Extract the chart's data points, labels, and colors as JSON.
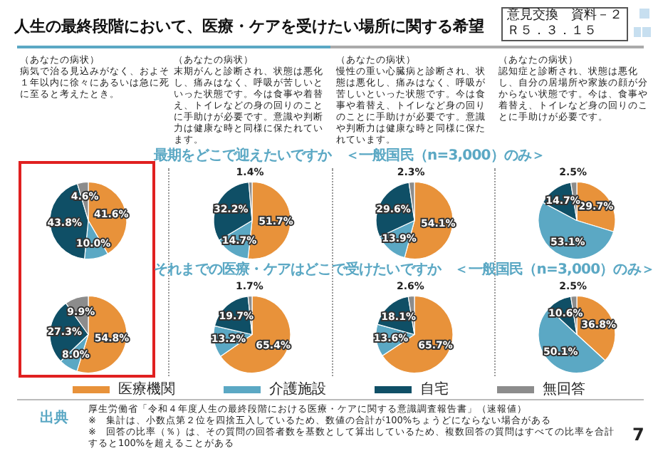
{
  "chart_data": [
    {
      "type": "other",
      "title": "人生の最終段階において、医療・ケアを受けたい場所に関する希望",
      "annotations": [
        "意見交換　資料－２",
        "Ｒ５．３．１５",
        "出典",
        "厚生労働省「令和４年度人生の最終段階における医療・ケアに関する意識調査報告書」（速報値）",
        "※　集計は、小数点第２位を四捨五入しているため、数値の合計が100%ちょうどにならない場合がある",
        "※　回答の比率（％）は、その質問の回答者数を基数として算出しているため、複数回答の質問はすべての比率を合計すると100%を超えることがある",
        "7"
      ]
    },
    {
      "type": "pie",
      "annotations": [
        "（あなたの病状）"
      ],
      "subtitle": "病気で治る見込みがなく、およそ１年以内に徐々にあるいは急に死に至ると考えたとき。",
      "categories": [
        "医療機関",
        "介護施設",
        "自宅",
        "無回答"
      ],
      "values": [
        41.6,
        10.0,
        43.8,
        4.6
      ],
      "value_labels": [
        "41.6%",
        "10.0%",
        "43.8%",
        "4.6%"
      ],
      "colors": [
        "#e8923a",
        "#5ba8c4",
        "#0f4f66",
        "#8c8c8c"
      ],
      "legend": "bottom"
    },
    {
      "type": "pie",
      "title": "最期をどこで迎えたいですか　＜一般国民（n=3,000）のみ＞",
      "annotations": [
        "（あなたの病状）"
      ],
      "subtitle": "末期がんと診断され、状態は悪化し、痛みはなく、呼吸が苦しいといった状態です。今は食事や着替え、トイレなどの身の回りのことに手助けが必要です。意識や判断力は健康な時と同様に保たれています。",
      "categories": [
        null,
        null,
        null,
        null
      ],
      "values": [
        51.7,
        14.7,
        32.2,
        1.4
      ],
      "value_labels": [
        "51.7%",
        "14.7%",
        "32.2%",
        "1.4%"
      ],
      "colors": [
        "#e8923a",
        "#5ba8c4",
        "#0f4f66",
        "#8c8c8c"
      ]
    },
    {
      "type": "pie",
      "annotations": [
        "（あなたの病状）"
      ],
      "subtitle": "慢性の重い心臓病と診断され、状態は悪化し、痛みはなく、呼吸が苦しいといった状態です。今は食事や着替え、トイレなど身の回りのことに手助けが必要です。意識や判断力は健康な時と同様に保たれています。",
      "categories": [
        null,
        null,
        null,
        null
      ],
      "values": [
        54.1,
        13.9,
        29.6,
        2.3
      ],
      "value_labels": [
        "54.1%",
        "13.9%",
        "29.6%",
        "2.3%"
      ],
      "colors": [
        "#e8923a",
        "#5ba8c4",
        "#0f4f66",
        "#8c8c8c"
      ]
    },
    {
      "type": "pie",
      "annotations": [
        "（あなたの病状）"
      ],
      "subtitle": "認知症と診断され、状態は悪化し、自分の居場所や家族の顔が分からない状態です。今は、食事や着替え、トイレなど身の回りのことに手助けが必要です。",
      "categories": [
        null,
        null,
        null,
        null
      ],
      "values": [
        29.7,
        53.1,
        14.7,
        2.5
      ],
      "value_labels": [
        "29.7%",
        "53.1%",
        "14.7%",
        "2.5%"
      ],
      "colors": [
        "#e8923a",
        "#5ba8c4",
        "#0f4f66",
        "#8c8c8c"
      ]
    },
    {
      "type": "pie",
      "categories": [
        null,
        null,
        null,
        null
      ],
      "values": [
        54.8,
        8.0,
        27.3,
        9.9
      ],
      "value_labels": [
        "54.8%",
        "8.0%",
        "27.3%",
        "9.9%"
      ],
      "colors": [
        "#e8923a",
        "#5ba8c4",
        "#0f4f66",
        "#8c8c8c"
      ]
    },
    {
      "type": "pie",
      "title": "それまでの医療・ケアはどこで受けたいですか　＜一般国民（n=3,000）のみ＞",
      "categories": [
        null,
        null,
        null,
        null
      ],
      "values": [
        65.4,
        13.2,
        19.7,
        1.7
      ],
      "value_labels": [
        "65.4%",
        "13.2%",
        "19.7%",
        "1.7%"
      ],
      "colors": [
        "#e8923a",
        "#5ba8c4",
        "#0f4f66",
        "#8c8c8c"
      ]
    },
    {
      "type": "pie",
      "categories": [
        null,
        null,
        null,
        null
      ],
      "values": [
        65.7,
        13.6,
        18.1,
        2.6
      ],
      "value_labels": [
        "65.7%",
        "13.6%",
        "18.1%",
        "2.6%"
      ],
      "colors": [
        "#e8923a",
        "#5ba8c4",
        "#0f4f66",
        "#8c8c8c"
      ]
    },
    {
      "type": "pie",
      "categories": [
        null,
        null,
        null,
        null
      ],
      "values": [
        36.8,
        50.1,
        10.6,
        2.5
      ],
      "value_labels": [
        "36.8%",
        "50.1%",
        "10.6%",
        "2.5%"
      ],
      "colors": [
        "#e8923a",
        "#5ba8c4",
        "#0f4f66",
        "#8c8c8c"
      ]
    }
  ]
}
